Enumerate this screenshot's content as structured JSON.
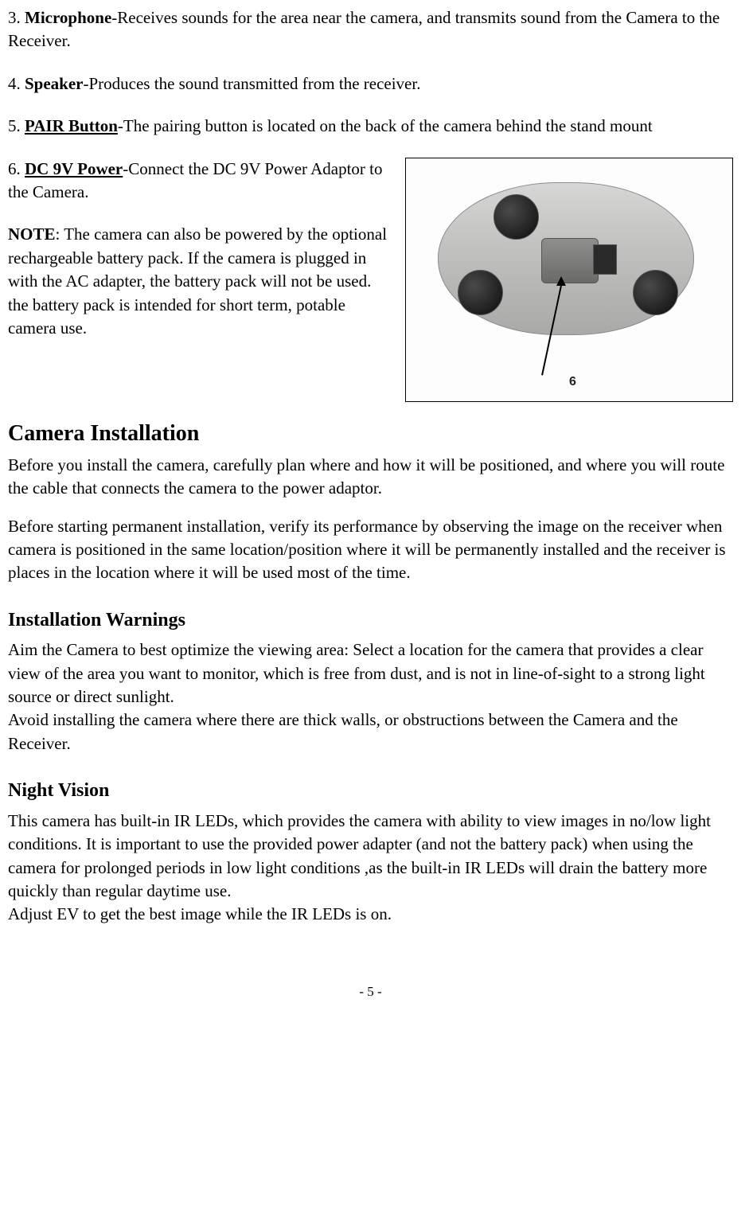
{
  "items": {
    "item3": {
      "num": "3. ",
      "term": "Microphone",
      "desc": "-Receives sounds for the area near the camera, and transmits sound from the Camera to the Receiver."
    },
    "item4": {
      "num": "4. ",
      "term": "Speaker",
      "desc": "-Produces the sound transmitted from the receiver."
    },
    "item5": {
      "num": "5. ",
      "term": "PAIR Button",
      "desc": "-The pairing button is located on the back of the camera behind the stand mount"
    },
    "item6": {
      "num": "6. ",
      "term": "DC 9V Power",
      "desc": "-Connect the DC 9V Power Adaptor to the Camera."
    },
    "note": {
      "label": "NOTE",
      "text": ": The camera can also be powered by the optional rechargeable battery pack. If the camera is plugged in with the AC adapter, the battery pack will not be used. the battery pack is intended for short term, potable camera use."
    }
  },
  "image": {
    "callout": "6"
  },
  "sections": {
    "camera_install": {
      "title": "Camera Installation",
      "p1": "Before you install the camera, carefully plan where and how it will be positioned, and where you will route the cable that connects the camera to the power adaptor.",
      "p2": "Before starting permanent installation, verify its performance by observing the image on the receiver when camera is positioned in the same location/position where it will be permanently installed and the receiver is places in the location where it will be used most of the time."
    },
    "warnings": {
      "title": "Installation Warnings",
      "p1": "Aim the Camera to best optimize the viewing area: Select a location for the camera that provides a clear view of the area you want to monitor, which is free from dust, and is not in line-of-sight to a strong light source or direct sunlight.",
      "p2": "Avoid installing the camera where there are thick walls, or obstructions between the Camera and the Receiver."
    },
    "night": {
      "title": "Night Vision",
      "p1": "This camera has built-in IR LEDs, which provides the camera with ability to view images in no/low light conditions. It is important to use the provided power adapter (and not the battery pack) when using the camera for prolonged periods in low light conditions ,as the built-in IR LEDs will drain the battery more quickly than regular daytime use.",
      "p2": "Adjust EV to get the best image while the IR LEDs is on."
    }
  },
  "footer": "- 5 -"
}
